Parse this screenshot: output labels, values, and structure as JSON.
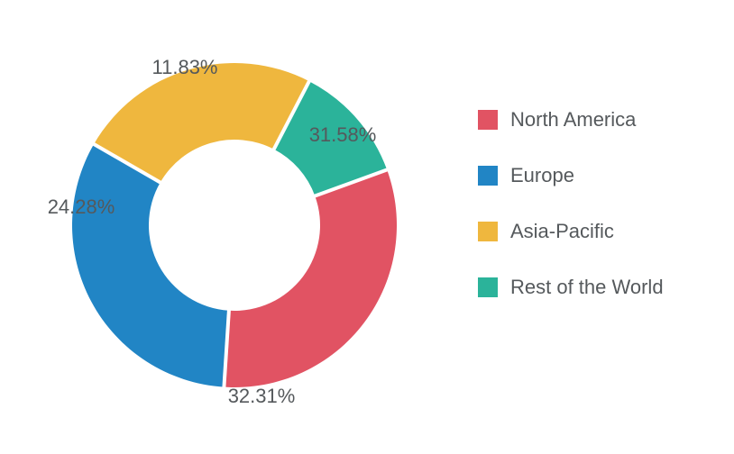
{
  "chart": {
    "type": "donut",
    "background_color": "#ffffff",
    "label_fontsize": 22,
    "label_color": "#55595c",
    "legend_fontsize": 22,
    "legend_color": "#55595c",
    "outer_radius": 180,
    "inner_radius": 95,
    "gap_color": "#ffffff",
    "gap_width": 4,
    "start_angle_deg": -20,
    "slices": [
      {
        "label": "North America",
        "value": 31.58,
        "color": "#e15363",
        "display": "31.58%"
      },
      {
        "label": "Europe",
        "value": 32.31,
        "color": "#2185c5",
        "display": "32.31%"
      },
      {
        "label": "Asia-Pacific",
        "value": 24.28,
        "color": "#efb73e",
        "display": "24.28%"
      },
      {
        "label": "Rest of the World",
        "value": 11.83,
        "color": "#2bb39a",
        "display": "11.83%"
      }
    ]
  }
}
